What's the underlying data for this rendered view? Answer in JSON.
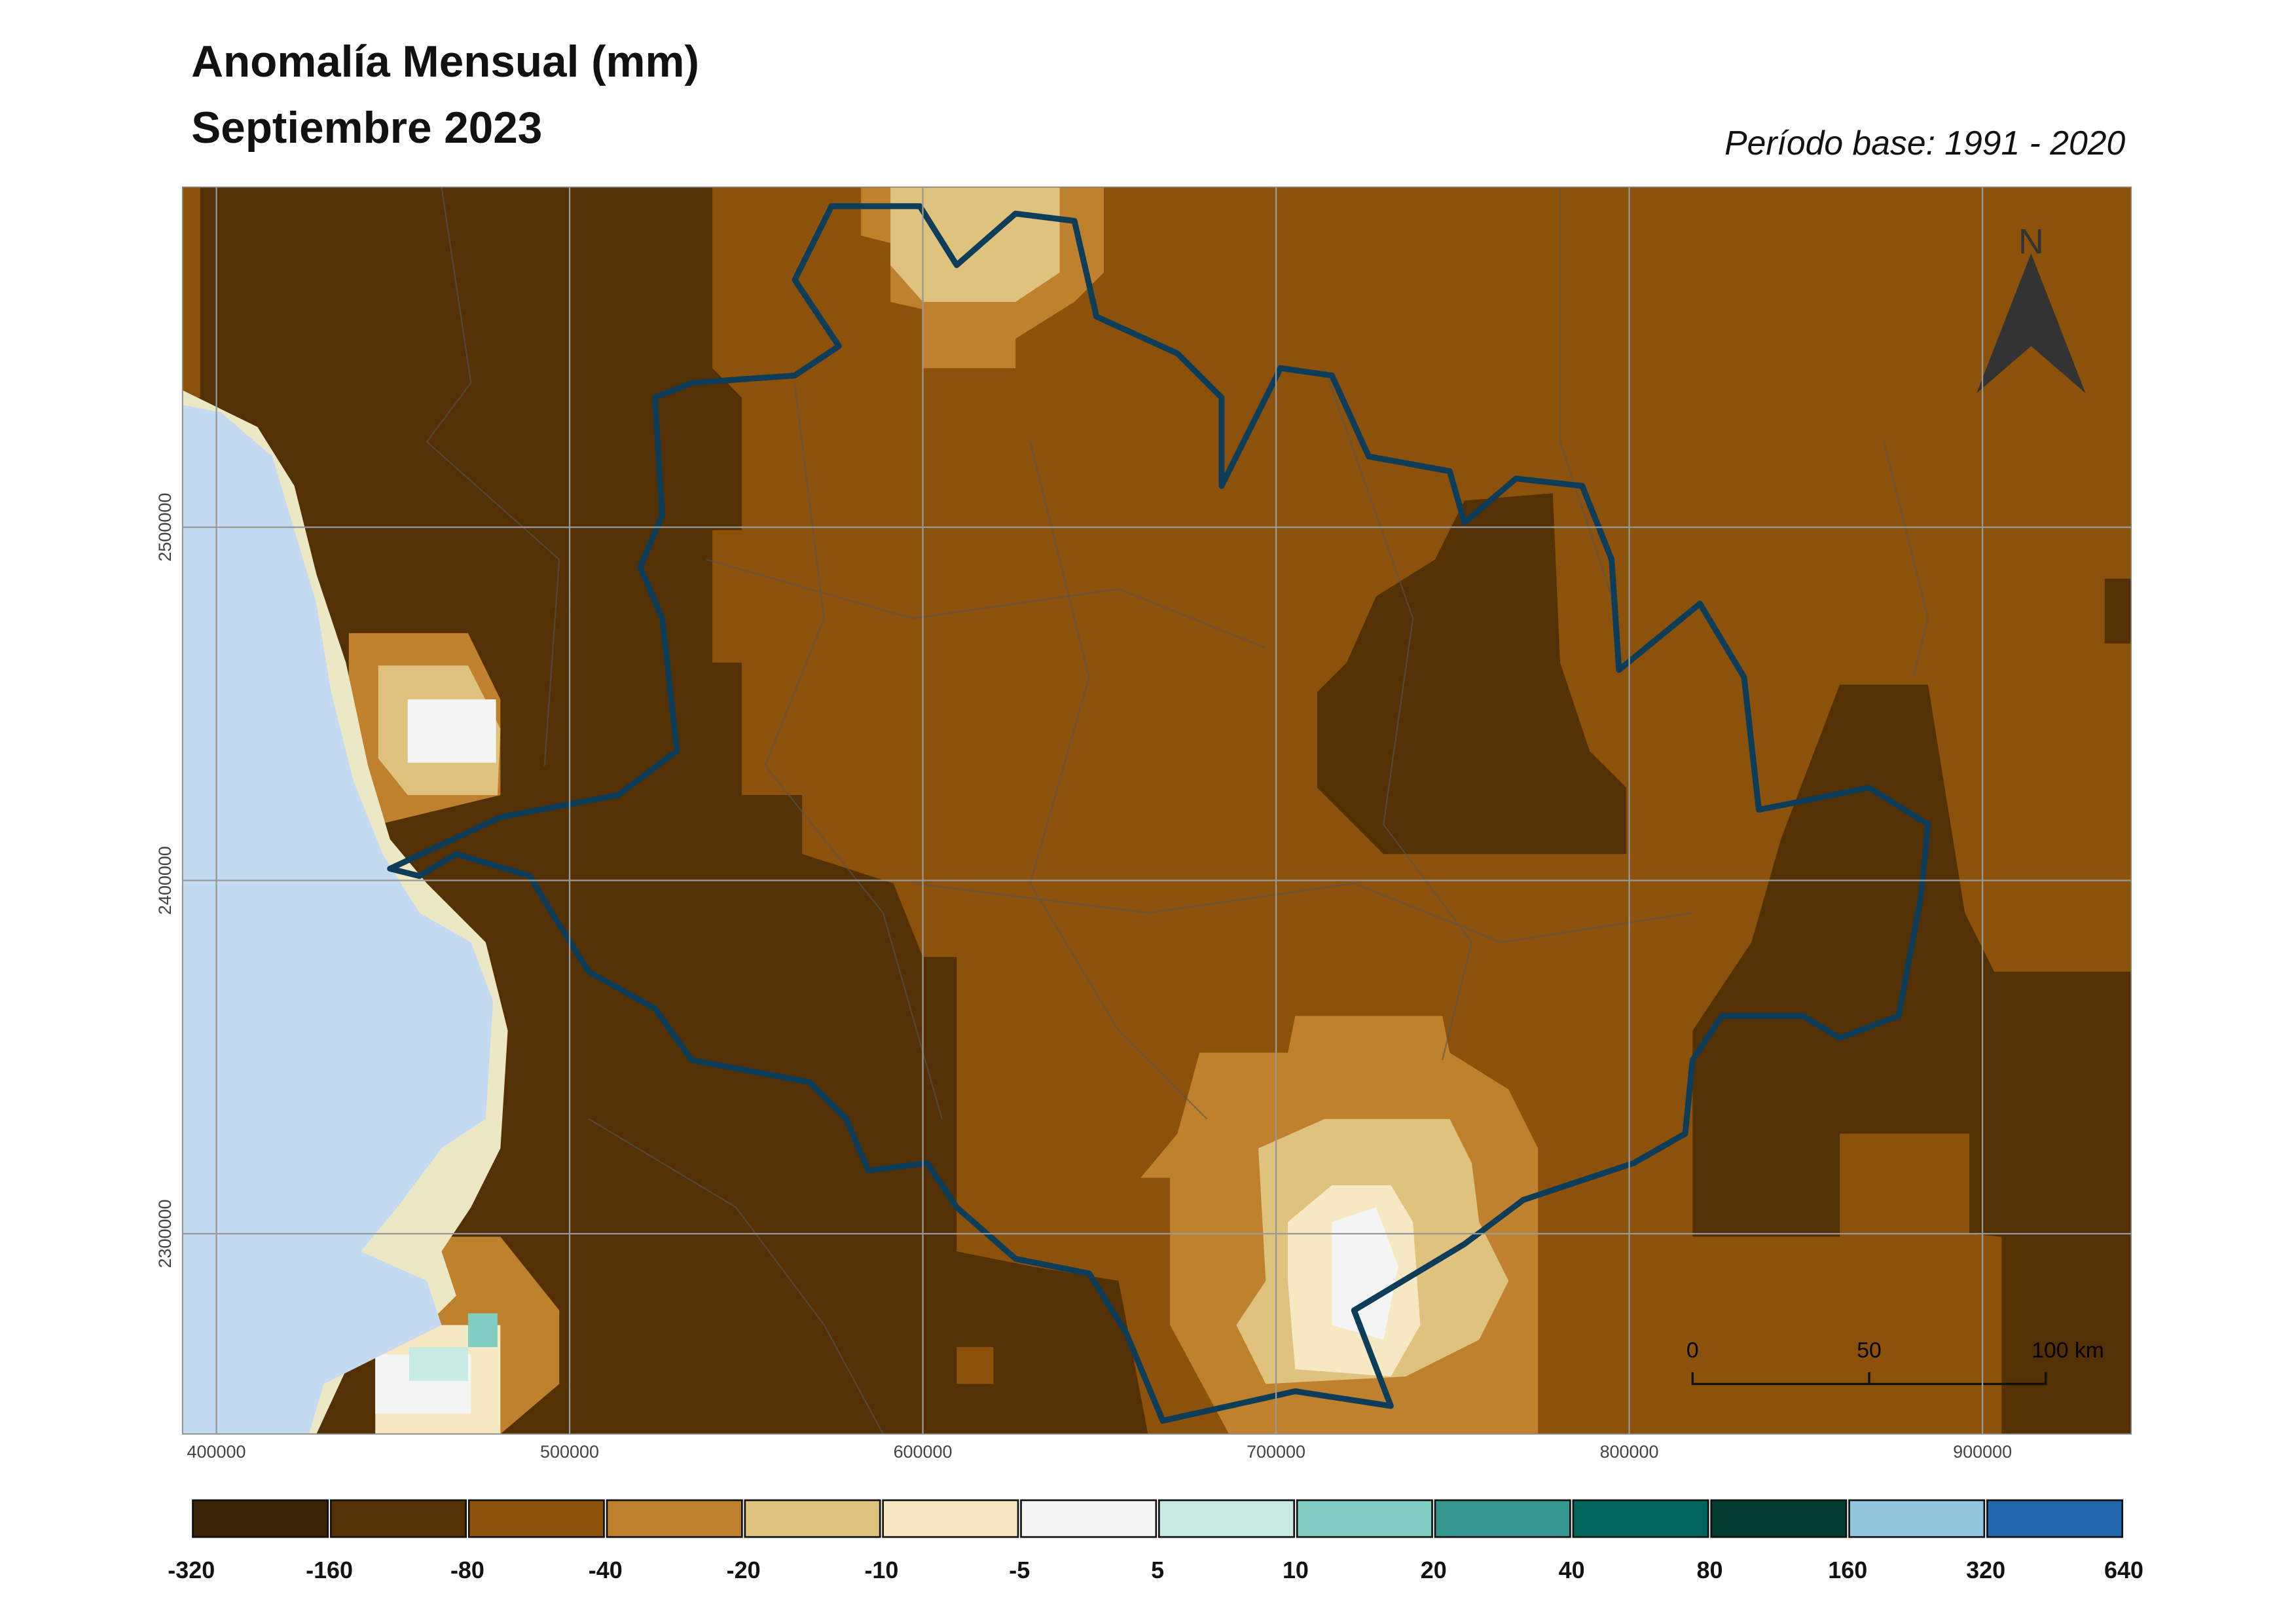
{
  "map": {
    "title": "Anomalía Mensual (mm)",
    "subtitle": "Septiembre 2023",
    "base_period": "Período base: 1991 - 2020",
    "xlim": [
      390400,
      942100
    ],
    "ylim": [
      2243300,
      2596300
    ],
    "xticks": [
      400000,
      500000,
      600000,
      700000,
      800000,
      900000
    ],
    "yticks": [
      2300000,
      2400000,
      2500000
    ],
    "grid": true,
    "north": "N",
    "scale_bar": [
      "0",
      "50",
      "100 km"
    ],
    "legend": {
      "breaks": [
        -320,
        -160,
        -80,
        -40,
        -20,
        -10,
        -5,
        5,
        10,
        20,
        40,
        80,
        160,
        320,
        640
      ],
      "colors": [
        "#3a2205",
        "#543005",
        "#8c510a",
        "#bf812d",
        "#dfc27d",
        "#f6e8c3",
        "#f5f5f5",
        "#c7eae5",
        "#80cdc1",
        "#35978f",
        "#01665e",
        "#003c30",
        "#92c5de",
        "#2166ac"
      ]
    }
  }
}
